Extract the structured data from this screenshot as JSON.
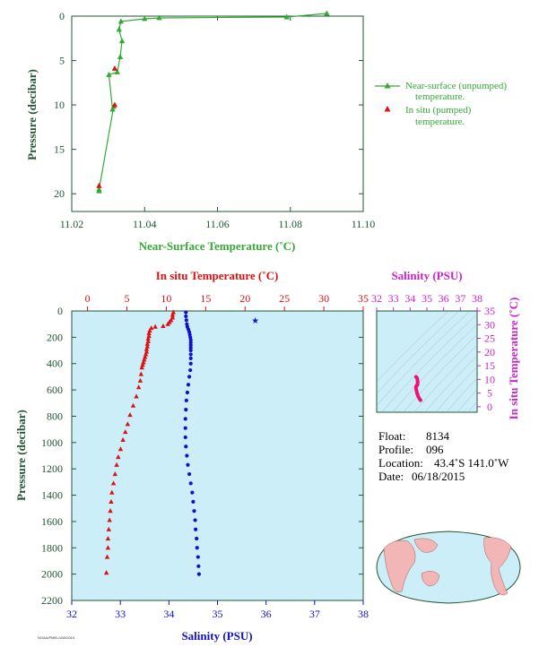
{
  "chart_data": [
    {
      "type": "line",
      "xlabel": "Near-Surface Temperature (˚C)",
      "ylabel": "Pressure (decibar)",
      "xlim": [
        11.02,
        11.1
      ],
      "ylim": [
        22,
        0
      ],
      "xticks": [
        "11.02",
        "11.04",
        "11.06",
        "11.08",
        "11.10"
      ],
      "yticks": [
        "0",
        "5",
        "10",
        "15",
        "20"
      ],
      "legend_placement": "right",
      "series": [
        {
          "name": "Near-surface (unpumped) temperature.",
          "color": "#33aa33",
          "marker": "triangle",
          "x": [
            11.09,
            11.079,
            11.044,
            11.04,
            11.0335,
            11.033,
            11.0338,
            11.0333,
            11.0325,
            11.0302,
            11.0312,
            11.0315,
            11.0275,
            11.0275
          ],
          "y": [
            -0.3,
            0.1,
            0.2,
            0.3,
            0.6,
            1.5,
            2.8,
            4.6,
            6.3,
            6.6,
            10.5,
            10.2,
            19.5,
            19.7
          ]
        },
        {
          "name": "In situ (pumped) temperature.",
          "color": "#dd1111",
          "marker": "triangle",
          "x": [
            11.0318,
            11.0318,
            11.0275
          ],
          "y": [
            5.9,
            10.0,
            19.1
          ]
        }
      ]
    },
    {
      "type": "scatter",
      "ylabel": "Pressure (decibar)",
      "ylim": [
        2200,
        0
      ],
      "yticks": [
        "0",
        "200",
        "400",
        "600",
        "800",
        "1000",
        "1200",
        "1400",
        "1600",
        "1800",
        "2000",
        "2200"
      ],
      "x_top": {
        "label": "In situ Temperature (˚C)",
        "range": [
          -2,
          35
        ],
        "ticks": [
          "0",
          "5",
          "10",
          "15",
          "20",
          "25",
          "30",
          "35"
        ]
      },
      "x_bottom": {
        "label": "Salinity (PSU)",
        "range": [
          32,
          38
        ],
        "ticks": [
          "32",
          "33",
          "34",
          "35",
          "36",
          "37",
          "38"
        ]
      },
      "series": [
        {
          "name": "temperature",
          "color": "#dd1111",
          "marker": "triangle",
          "x": [
            10.9,
            10.8,
            10.8,
            10.6,
            10.4,
            10.2,
            9.6,
            8.6,
            8.1,
            7.9,
            7.8,
            7.8,
            7.7,
            7.7,
            7.6,
            7.6,
            7.5,
            7.5,
            7.4,
            7.3,
            7.2,
            7.1,
            7.0,
            6.9,
            6.8,
            6.7,
            6.5,
            6.2,
            5.8,
            5.4,
            5.1,
            4.8,
            4.5,
            4.2,
            3.9,
            3.7,
            3.5,
            3.3,
            3.1,
            3.0,
            2.9,
            2.8,
            2.7,
            2.6,
            2.6,
            2.5,
            2.4
          ],
          "y": [
            10,
            30,
            50,
            70,
            85,
            100,
            115,
            120,
            130,
            150,
            170,
            190,
            210,
            230,
            250,
            270,
            290,
            310,
            330,
            350,
            370,
            390,
            410,
            430,
            480,
            530,
            580,
            650,
            720,
            790,
            860,
            920,
            980,
            1050,
            1110,
            1170,
            1240,
            1310,
            1380,
            1450,
            1520,
            1590,
            1660,
            1730,
            1800,
            1870,
            1990
          ]
        },
        {
          "name": "salinity",
          "color": "#1111cc",
          "marker": "circle",
          "x": [
            34.35,
            34.35,
            34.36,
            34.37,
            34.38,
            34.4,
            34.42,
            34.43,
            34.44,
            34.45,
            34.45,
            34.45,
            34.45,
            34.45,
            34.45,
            34.45,
            34.45,
            34.44,
            34.42,
            34.4,
            34.38,
            34.36,
            34.35,
            34.34,
            34.34,
            34.34,
            34.35,
            34.37,
            34.39,
            34.42,
            34.45,
            34.48,
            34.5,
            34.52,
            34.54,
            34.55,
            34.57,
            34.58,
            34.6,
            34.61,
            34.62
          ],
          "y": [
            10,
            40,
            70,
            100,
            120,
            140,
            160,
            180,
            200,
            220,
            240,
            260,
            280,
            300,
            330,
            360,
            400,
            450,
            500,
            560,
            620,
            680,
            750,
            820,
            890,
            960,
            1030,
            1100,
            1170,
            1240,
            1310,
            1380,
            1450,
            1520,
            1590,
            1660,
            1730,
            1800,
            1870,
            1940,
            2000
          ]
        }
      ]
    },
    {
      "type": "scatter",
      "x_top": {
        "label": "Salinity (PSU)",
        "range": [
          32,
          38
        ],
        "ticks": [
          "32",
          "33",
          "34",
          "35",
          "36",
          "37",
          "38"
        ]
      },
      "y_right": {
        "label": "In situ Temperature (˚C)",
        "range": [
          -2,
          35
        ],
        "ticks": [
          "0",
          "5",
          "10",
          "15",
          "20",
          "25",
          "30",
          "35"
        ]
      },
      "series": [
        {
          "name": "T-S",
          "color": "#ee1177",
          "x": [
            34.62,
            34.55,
            34.48,
            34.42,
            34.38,
            34.35,
            34.35,
            34.38,
            34.43,
            34.45,
            34.44,
            34.42,
            34.38,
            34.35
          ],
          "y": [
            2.4,
            3.0,
            3.8,
            4.8,
            5.8,
            6.8,
            7.4,
            7.7,
            7.9,
            8.6,
            9.6,
            10.4,
            10.8,
            10.9
          ]
        }
      ]
    }
  ],
  "legend": {
    "unpumped_line1": "Near-surface (unpumped)",
    "unpumped_line2": "temperature.",
    "pumped_line1": "In situ (pumped)",
    "pumped_line2": "temperature."
  },
  "info": {
    "float_label": "Float:",
    "float_value": "8134",
    "profile_label": "Profile:",
    "profile_value": "096",
    "location_label": "Location:",
    "location_value": "43.4˚S  141.0˚W",
    "date_label": "Date:",
    "date_value": "06/18/2015"
  },
  "footer_code": "NOAA/PMEL/UW/2015",
  "colors": {
    "green": "#33aa33",
    "dark": "#225533",
    "red": "#dd1111",
    "blue": "#1111cc",
    "magenta": "#cc22cc",
    "panel_bg": "#cceef8"
  }
}
